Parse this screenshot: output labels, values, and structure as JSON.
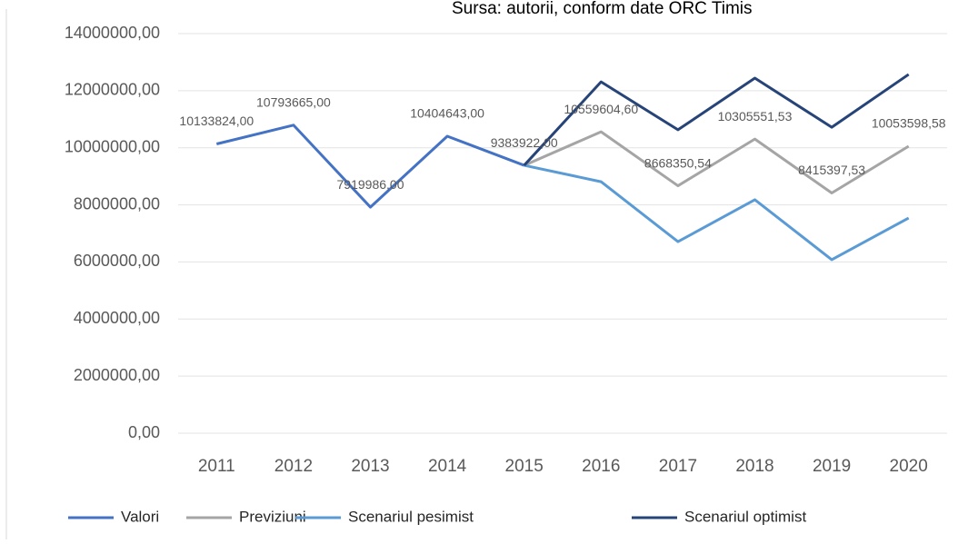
{
  "chart_data": {
    "type": "line",
    "source": "Sursa: autorii, conform date ORC Timis",
    "categories": [
      "2011",
      "2012",
      "2013",
      "2014",
      "2015",
      "2016",
      "2017",
      "2018",
      "2019",
      "2020"
    ],
    "series": [
      {
        "name": "Valori",
        "color": "#4472c4",
        "values": [
          10133824,
          10793665,
          7919986,
          10404643,
          9383922,
          null,
          null,
          null,
          null,
          null
        ],
        "value_labels": [
          "10133824,00",
          "10793665,00",
          "7919986,00",
          "10404643,00",
          "9383922,00",
          null,
          null,
          null,
          null,
          null
        ]
      },
      {
        "name": "Previziuni",
        "color": "#a5a5a5",
        "values": [
          null,
          null,
          null,
          null,
          9383922,
          10559604.6,
          8668350.54,
          10305551.53,
          8415397.53,
          10053598.58
        ],
        "value_labels": [
          null,
          null,
          null,
          null,
          null,
          "10559604,60",
          "8668350,54",
          "10305551,53",
          "8415397,53",
          "10053598,58"
        ]
      },
      {
        "name": "Scenariul pesimist",
        "color": "#5b9bd5",
        "values": [
          null,
          null,
          null,
          null,
          9383922,
          8810000,
          6710000,
          8180000,
          6080000,
          7540000
        ]
      },
      {
        "name": "Scenariul optimist",
        "color": "#264478",
        "values": [
          null,
          null,
          null,
          null,
          9383922,
          12310000,
          10630000,
          12440000,
          10720000,
          12570000
        ]
      }
    ],
    "ylim": [
      0,
      14000000
    ],
    "yticks": [
      {
        "value": 0,
        "label": "0,00"
      },
      {
        "value": 2000000,
        "label": "2000000,00"
      },
      {
        "value": 4000000,
        "label": "4000000,00"
      },
      {
        "value": 6000000,
        "label": "6000000,00"
      },
      {
        "value": 8000000,
        "label": "8000000,00"
      },
      {
        "value": 10000000,
        "label": "10000000,00"
      },
      {
        "value": 12000000,
        "label": "12000000,00"
      },
      {
        "value": 14000000,
        "label": "14000000,00"
      }
    ],
    "grid": true,
    "legend": "bottom"
  }
}
